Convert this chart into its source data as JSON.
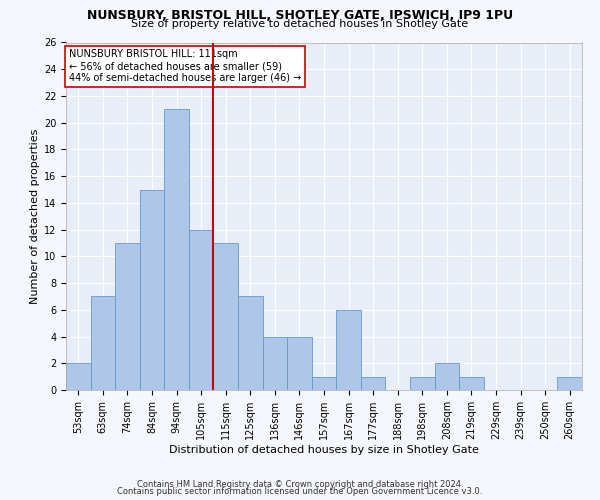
{
  "title1": "NUNSBURY, BRISTOL HILL, SHOTLEY GATE, IPSWICH, IP9 1PU",
  "title2": "Size of property relative to detached houses in Shotley Gate",
  "xlabel": "Distribution of detached houses by size in Shotley Gate",
  "ylabel": "Number of detached properties",
  "footer1": "Contains HM Land Registry data © Crown copyright and database right 2024.",
  "footer2": "Contains public sector information licensed under the Open Government Licence v3.0.",
  "annotation_line1": "NUNSBURY BRISTOL HILL: 111sqm",
  "annotation_line2": "← 56% of detached houses are smaller (59)",
  "annotation_line3": "44% of semi-detached houses are larger (46) →",
  "bar_color": "#aec6e8",
  "bar_edge_color": "#6699cc",
  "vline_color": "#cc0000",
  "background_color": "#e8eef8",
  "grid_color": "#ffffff",
  "fig_background": "#f5f7fc",
  "categories": [
    "53sqm",
    "63sqm",
    "74sqm",
    "84sqm",
    "94sqm",
    "105sqm",
    "115sqm",
    "125sqm",
    "136sqm",
    "146sqm",
    "157sqm",
    "167sqm",
    "177sqm",
    "188sqm",
    "198sqm",
    "208sqm",
    "219sqm",
    "229sqm",
    "239sqm",
    "250sqm",
    "260sqm"
  ],
  "values": [
    2,
    7,
    11,
    15,
    21,
    12,
    11,
    7,
    4,
    4,
    1,
    6,
    1,
    0,
    1,
    2,
    1,
    0,
    0,
    0,
    1
  ],
  "vline_x": 5.5,
  "ylim": [
    0,
    26
  ],
  "yticks": [
    0,
    2,
    4,
    6,
    8,
    10,
    12,
    14,
    16,
    18,
    20,
    22,
    24,
    26
  ],
  "title1_fontsize": 9,
  "title2_fontsize": 8,
  "xlabel_fontsize": 8,
  "ylabel_fontsize": 8,
  "tick_fontsize": 7,
  "annotation_fontsize": 7,
  "footer_fontsize": 6
}
